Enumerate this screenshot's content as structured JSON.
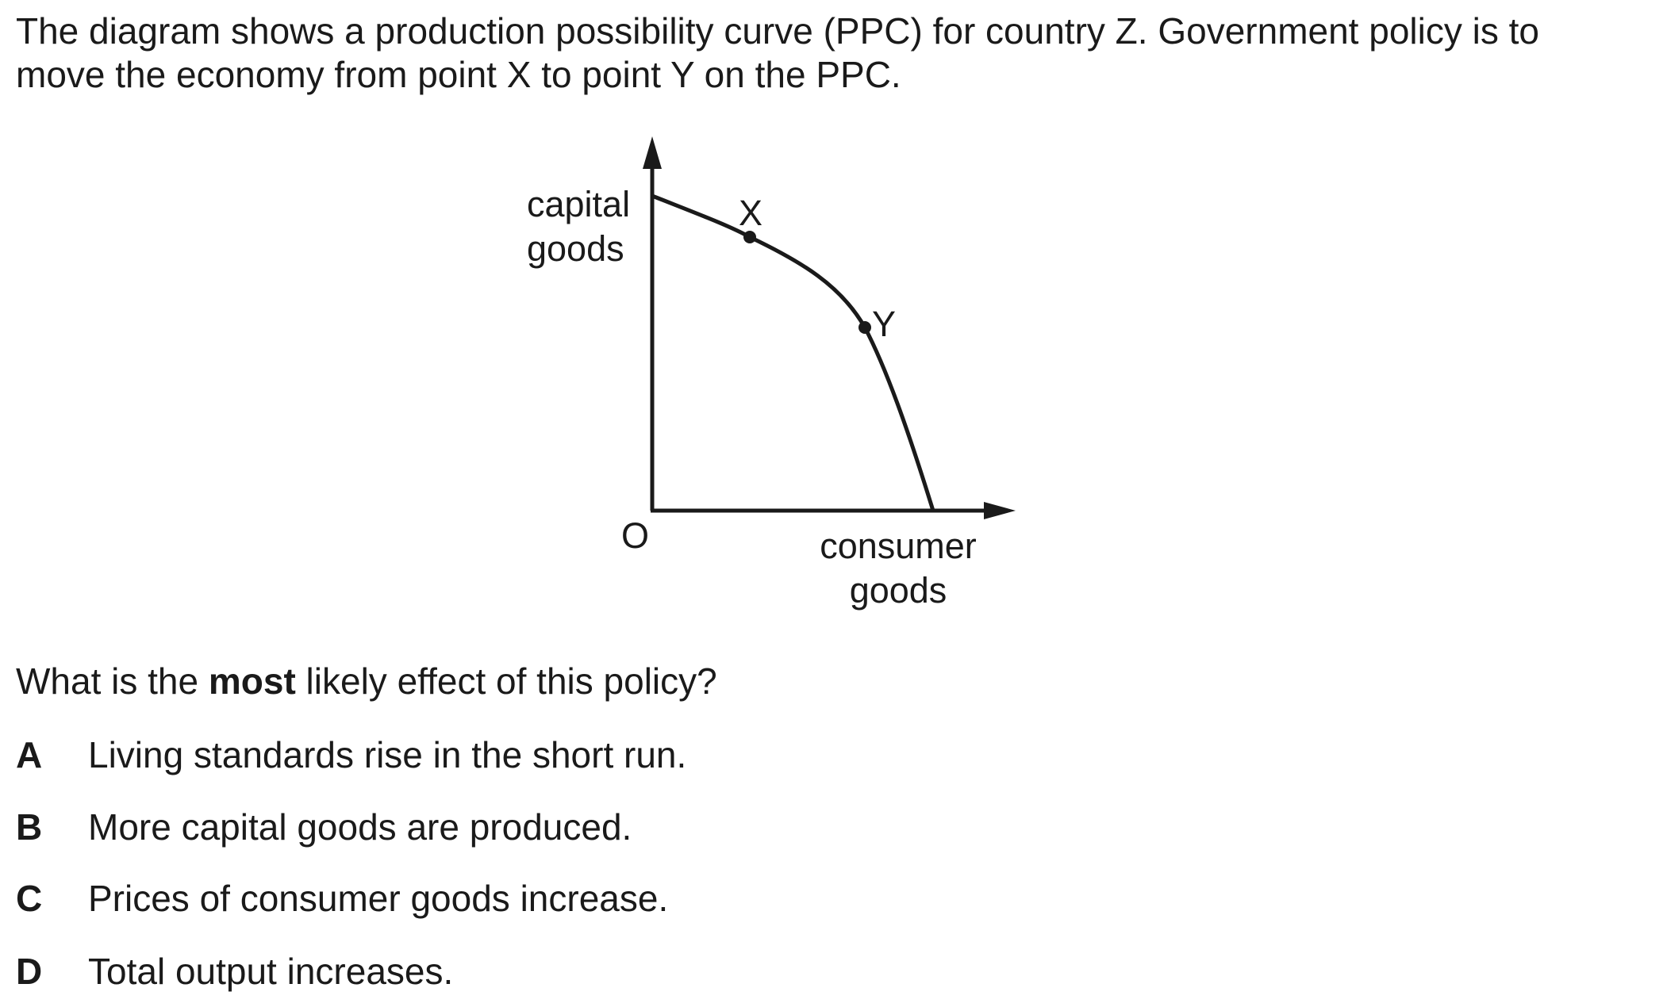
{
  "intro": {
    "line1": "The diagram shows a production possibility curve (PPC) for country Z. Government policy is to",
    "line2": "move the economy from point X to point Y on the PPC."
  },
  "diagram": {
    "y_label_line1": "capital",
    "y_label_line2": "goods",
    "x_label_line1": "consumer",
    "x_label_line2": "goods",
    "origin": "O",
    "point_x": "X",
    "point_y": "Y"
  },
  "question": {
    "before": "What is the ",
    "emphasis": "most",
    "after": " likely effect of this policy?"
  },
  "options": [
    {
      "letter": "A",
      "text": "Living standards rise in the short run."
    },
    {
      "letter": "B",
      "text": "More capital goods are produced."
    },
    {
      "letter": "C",
      "text": "Prices of consumer goods increase."
    },
    {
      "letter": "D",
      "text": "Total output increases."
    }
  ]
}
